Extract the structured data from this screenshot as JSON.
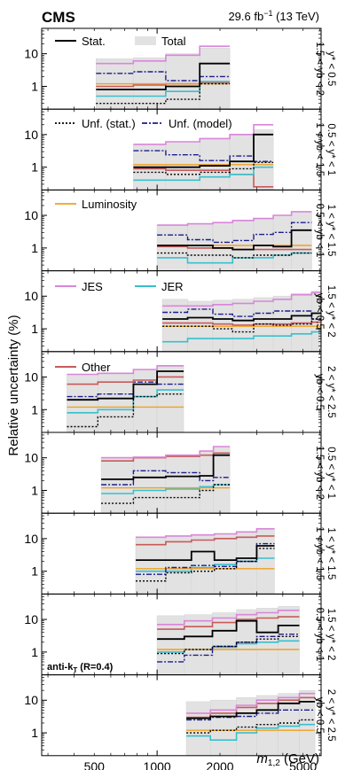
{
  "header": {
    "experiment": "CMS",
    "lumi_text": "29.6 fb",
    "lumi_sup": "−1",
    "energy_text": " (13 TeV)"
  },
  "axes": {
    "ylabel": "Relative uncertainty (%)",
    "xlabel_var": "m",
    "xlabel_sub": "1,2",
    "xlabel_unit": " (GeV)",
    "x_ticks": [
      "500",
      "1000",
      "2000",
      "5000"
    ],
    "y_ticks": [
      "1",
      "10"
    ],
    "algo_label": "anti-k",
    "algo_sub": "T",
    "algo_param": " (R=0.4)"
  },
  "legend": {
    "stat": "Stat.",
    "total": "Total",
    "unf_stat": "Unf. (stat.)",
    "unf_model": "Unf. (model)",
    "lumi": "Luminosity",
    "jes": "JES",
    "jer": "JER",
    "other": "Other"
  },
  "colors": {
    "stat": "#000000",
    "total_fill": "#e2e2e2",
    "unf_stat": "#000000",
    "unf_model": "#1c1c8c",
    "lumi": "#f0a020",
    "jes": "#d986d9",
    "jer": "#38c0cc",
    "other": "#c85a5a"
  },
  "chart_data": {
    "type": "area",
    "x_scale": "log",
    "y_scale": "log",
    "xlim": [
      280,
      6100
    ],
    "ylim": [
      0.2,
      60
    ],
    "xlabel": "m1,2 (GeV)",
    "ylabel": "Relative uncertainty (%)",
    "panels": [
      {
        "region_line1": "y* < 0.5",
        "region_line2": "1.5 < yb < 2",
        "edges": [
          510,
          770,
          1100,
          1600,
          2230
        ],
        "series": {
          "total": [
            7,
            7.5,
            10,
            15
          ],
          "stat": [
            0.8,
            0.8,
            1.0,
            5
          ],
          "unf_stat": [
            0.3,
            0.3,
            0.4,
            1.2
          ],
          "unf_model": [
            2.5,
            2.8,
            1.5,
            2.0
          ],
          "lumi": [
            1.2,
            1.2,
            1.2,
            1.2
          ],
          "jes": [
            5,
            6,
            9,
            17
          ],
          "jer": [
            0.5,
            0.5,
            0.7,
            1.4
          ],
          "other": [
            1.0,
            1.1,
            1.2,
            1.3
          ]
        }
      },
      {
        "region_line1": "0.5 < y* < 1",
        "region_line2": "1 < yb < 1.5",
        "edges": [
          770,
          1100,
          1600,
          2230,
          2900,
          3600
        ],
        "series": {
          "total": [
            5,
            6,
            7.5,
            10,
            14
          ],
          "stat": [
            1.0,
            1.0,
            1.1,
            1.5,
            10
          ],
          "unf_stat": [
            0.7,
            0.6,
            0.7,
            0.9,
            1.4
          ],
          "unf_model": [
            3.2,
            2.4,
            1.6,
            2.2,
            1.5
          ],
          "lumi": [
            1.2,
            1.2,
            1.2,
            1.2,
            1.2
          ],
          "jes": [
            5,
            6,
            7.5,
            10,
            20
          ],
          "jer": [
            0.4,
            0.4,
            0.5,
            0.6,
            1.0
          ],
          "other": [
            0.9,
            0.8,
            0.8,
            0.6,
            0.25
          ]
        }
      },
      {
        "region_line1": "1 < y* < 1.5",
        "region_line2": "0.5 < yb < 1",
        "edges": [
          1000,
          1400,
          1850,
          2300,
          2900,
          3600,
          4400,
          5500
        ],
        "series": {
          "total": [
            5,
            5.5,
            6,
            7,
            8,
            10,
            13
          ],
          "stat": [
            1.2,
            1.2,
            1.0,
            0.9,
            1.2,
            1.1,
            3.5
          ],
          "unf_stat": [
            0.7,
            0.6,
            0.6,
            0.5,
            0.6,
            0.6,
            0.7
          ],
          "unf_model": [
            2.5,
            1.8,
            1.5,
            1.7,
            2.6,
            3.0,
            6
          ],
          "lumi": [
            1.2,
            1.2,
            1.2,
            1.2,
            1.2,
            1.2,
            1.2
          ],
          "jes": [
            5,
            5.5,
            6,
            7,
            8,
            10,
            13
          ],
          "jer": [
            0.5,
            0.35,
            0.35,
            0.5,
            0.5,
            0.6,
            0.7
          ],
          "other": [
            1.1,
            1.0,
            1.0,
            0.9,
            0.9,
            0.9,
            0.9
          ]
        }
      },
      {
        "region_line1": "1.5 < y* < 2",
        "region_line2": "yb < 0.5",
        "edges": [
          1060,
          1400,
          1850,
          2300,
          2900,
          3600,
          4400,
          5500,
          6100
        ],
        "series": {
          "total": [
            8,
            7,
            7.5,
            8,
            9,
            10,
            12,
            14
          ],
          "stat": [
            2.0,
            2.2,
            2.0,
            1.8,
            2.0,
            2.0,
            2.5,
            3.0
          ],
          "unf_stat": [
            1.2,
            1.2,
            1.0,
            0.8,
            1.4,
            1.3,
            1.4,
            2.0
          ],
          "unf_model": [
            3.2,
            4.0,
            2.8,
            2.4,
            3.0,
            3.5,
            3.5,
            2.0
          ],
          "lumi": [
            1.2,
            1.2,
            1.2,
            1.2,
            1.2,
            1.2,
            1.2,
            1.2
          ],
          "jes": [
            5,
            5,
            5.5,
            6,
            7,
            8,
            11,
            13
          ],
          "jer": [
            0.4,
            0.5,
            0.5,
            0.5,
            0.6,
            0.6,
            0.7,
            0.8
          ],
          "other": [
            1.5,
            1.5,
            1.4,
            1.3,
            1.4,
            1.4,
            1.5,
            1.6
          ]
        }
      },
      {
        "region_line1": "2 < y* < 2.5",
        "region_line2": "yb < 0.5",
        "edges": [
          370,
          520,
          770,
          1000,
          1340
        ],
        "series": {
          "total": [
            12,
            13,
            17,
            22
          ],
          "stat": [
            2.0,
            2.2,
            6,
            15
          ],
          "unf_stat": [
            0.3,
            0.6,
            2.5,
            3.0
          ],
          "unf_model": [
            2.5,
            3.0,
            7,
            6
          ],
          "lumi": [
            1.2,
            1.2,
            1.2,
            1.2
          ],
          "jes": [
            12,
            13,
            17,
            22
          ],
          "jer": [
            0.8,
            1.0,
            2.5,
            4.0
          ],
          "other": [
            6,
            7,
            8,
            10
          ]
        }
      },
      {
        "region_line1": "0.5 < y* < 1",
        "region_line2": "1.5 < yb < 2",
        "edges": [
          540,
          770,
          1100,
          1600,
          1860,
          2230
        ],
        "series": {
          "total": [
            10,
            10.5,
            12,
            16,
            22
          ],
          "stat": [
            2.2,
            2.5,
            2.7,
            2.8,
            12
          ],
          "unf_stat": [
            0.4,
            0.6,
            0.6,
            1.0,
            1.5
          ],
          "unf_model": [
            1.5,
            4.0,
            3.5,
            2.0,
            2.5
          ],
          "lumi": [
            1.2,
            1.2,
            1.2,
            1.2,
            1.2
          ],
          "jes": [
            10,
            10.5,
            12,
            16,
            22
          ],
          "jer": [
            0.8,
            1.0,
            1.1,
            1.3,
            1.5
          ],
          "other": [
            8,
            10,
            11,
            12,
            14
          ]
        }
      },
      {
        "region_line1": "1 < y* < 1.5",
        "region_line2": "1 < yb < 1.5",
        "edges": [
          790,
          1100,
          1460,
          1880,
          2400,
          3000,
          3650
        ],
        "series": {
          "total": [
            11,
            12,
            13,
            14,
            16,
            20
          ],
          "stat": [
            2.2,
            2.2,
            4.0,
            2.2,
            2.5,
            6
          ],
          "unf_stat": [
            0.5,
            0.9,
            1.0,
            1.2,
            2.0,
            5
          ],
          "unf_model": [
            0.8,
            1.3,
            1.5,
            1.4,
            2.0,
            7
          ],
          "lumi": [
            1.2,
            1.2,
            1.2,
            1.2,
            1.2,
            1.2
          ],
          "jes": [
            11,
            12,
            13,
            14,
            16,
            20
          ],
          "jer": [
            1.0,
            1.0,
            1.3,
            1.6,
            2.0,
            2.5
          ],
          "other": [
            6.5,
            8,
            9,
            10,
            11,
            12
          ]
        }
      },
      {
        "region_line1": "1.5 < y* < 2",
        "region_line2": "0.5 < yb < 1",
        "edges": [
          1000,
          1350,
          1840,
          2400,
          3000,
          3800,
          4800
        ],
        "series": {
          "total": [
            13,
            14,
            16,
            20,
            22,
            25
          ],
          "stat": [
            2.5,
            3.0,
            4.5,
            9,
            4.0,
            6.5
          ],
          "unf_stat": [
            0.9,
            1.2,
            1.5,
            2.0,
            2.5,
            3.0
          ],
          "unf_model": [
            0.5,
            0.8,
            1.5,
            2.0,
            3.0,
            3.5
          ],
          "lumi": [
            1.2,
            1.2,
            1.2,
            1.2,
            1.2,
            1.2
          ],
          "jes": [
            7,
            9,
            11,
            14,
            16,
            19
          ],
          "jer": [
            1.0,
            1.2,
            1.4,
            1.8,
            2.0,
            2.2
          ],
          "other": [
            5,
            6,
            8,
            10,
            11,
            12
          ]
        }
      },
      {
        "region_line1": "2 < y* < 2.5",
        "region_line2": "yb < 0.5",
        "edges": [
          1380,
          1800,
          2400,
          3000,
          3800,
          4800,
          5700
        ],
        "series": {
          "total": [
            9,
            10,
            12,
            14,
            16,
            20
          ],
          "stat": [
            2.8,
            3.2,
            4.0,
            5,
            8,
            9
          ],
          "unf_stat": [
            1.0,
            1.2,
            1.5,
            1.8,
            2.0,
            2.5
          ],
          "unf_model": [
            2.5,
            3.0,
            3.2,
            4.0,
            5,
            5
          ],
          "lumi": [
            1.2,
            1.2,
            1.2,
            1.2,
            1.2,
            1.2
          ],
          "jes": [
            4,
            5,
            7,
            10,
            12,
            16
          ],
          "jer": [
            0.8,
            0.6,
            1.0,
            1.4,
            1.6,
            1.8
          ],
          "other": [
            3.0,
            4.0,
            6,
            8,
            10,
            12
          ]
        }
      }
    ]
  }
}
